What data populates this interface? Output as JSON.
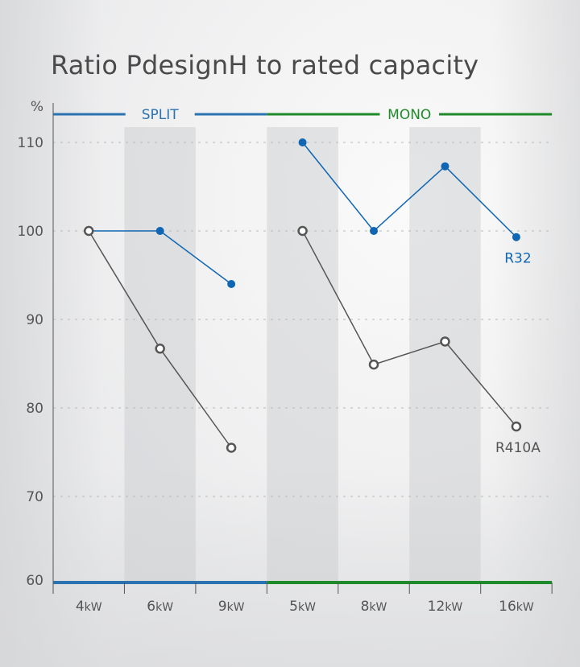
{
  "chart_data": {
    "type": "line",
    "title": "Ratio PdesignH to rated capacity",
    "ylabel": "%",
    "xlabel": "",
    "ylim": [
      60,
      110
    ],
    "yticks": [
      60,
      70,
      80,
      90,
      100,
      110
    ],
    "grid": true,
    "categories": [
      {
        "value": "4",
        "unit": "kW"
      },
      {
        "value": "6",
        "unit": "kW"
      },
      {
        "value": "9",
        "unit": "kW"
      },
      {
        "value": "5",
        "unit": "kW"
      },
      {
        "value": "8",
        "unit": "kW"
      },
      {
        "value": "12",
        "unit": "kW"
      },
      {
        "value": "16",
        "unit": "kW"
      }
    ],
    "shaded_categories": [
      1,
      3,
      5
    ],
    "groups": [
      {
        "name": "SPLIT",
        "start": 0,
        "end": 2,
        "color": "#2a72b0"
      },
      {
        "name": "MONO",
        "start": 3,
        "end": 6,
        "color": "#1e8a2a"
      }
    ],
    "series": [
      {
        "name": "R32",
        "color": "#1066b3",
        "marker": "filled",
        "segments": [
          [
            0,
            2
          ],
          [
            3,
            6
          ]
        ],
        "values": [
          100,
          100,
          94,
          110,
          100,
          107.3,
          99.3
        ]
      },
      {
        "name": "R410A",
        "color": "#555555",
        "marker": "hollow",
        "segments": [
          [
            0,
            2
          ],
          [
            3,
            6
          ]
        ],
        "values": [
          100,
          86.7,
          75.5,
          100,
          84.9,
          87.5,
          77.9
        ]
      }
    ],
    "legend": "inline-labels at right end of each series"
  }
}
